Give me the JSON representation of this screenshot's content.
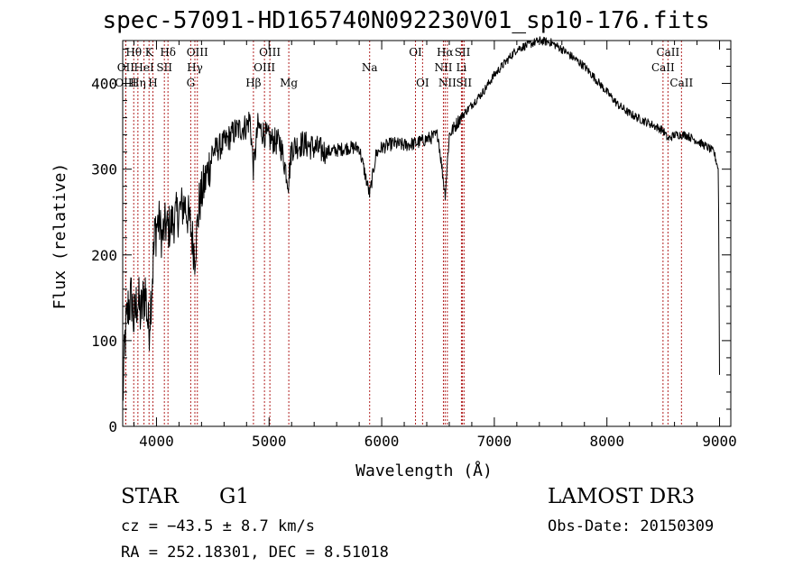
{
  "title": "spec-57091-HD165740N092230V01_sp10-176.fits",
  "info": {
    "object_class": "STAR",
    "subclass": "G1",
    "survey": "LAMOST DR3",
    "cz_line": "cz = −43.5 ± 8.7 km/s",
    "obs_date_line": "Obs-Date: 20150309",
    "radec_line": "RA = 252.18301, DEC =   8.51018"
  },
  "chart_data": {
    "type": "line",
    "title": "spec-57091-HD165740N092230V01_sp10-176.fits",
    "xlabel": "Wavelength (Å)",
    "ylabel": "Flux (relative)",
    "xlim": [
      3700,
      9100
    ],
    "ylim": [
      0,
      450
    ],
    "xticks": [
      4000,
      5000,
      6000,
      7000,
      8000,
      9000
    ],
    "yticks": [
      0,
      100,
      200,
      300,
      400
    ],
    "grid": false,
    "line_color": "#000000",
    "marker_color": "#b22222",
    "series": [
      {
        "x": [
          3700,
          3720,
          3750,
          3780,
          3800,
          3830,
          3860,
          3900,
          3930,
          3960,
          3990,
          4020,
          4050,
          4080,
          4100,
          4150,
          4200,
          4250,
          4300,
          4340,
          4380,
          4420,
          4500,
          4600,
          4700,
          4800,
          4830,
          4861,
          4900,
          5000,
          5100,
          5172,
          5200,
          5300,
          5400,
          5500,
          5600,
          5700,
          5800,
          5893,
          5950,
          6000,
          6100,
          6200,
          6300,
          6400,
          6500,
          6563,
          6600,
          6700,
          6800,
          6900,
          7000,
          7100,
          7200,
          7300,
          7400,
          7500,
          7600,
          7700,
          7800,
          7900,
          8000,
          8100,
          8200,
          8300,
          8400,
          8500,
          8542,
          8600,
          8700,
          8800,
          8900,
          8950,
          8990,
          9000
        ],
        "y": [
          30,
          100,
          140,
          150,
          120,
          150,
          130,
          160,
          110,
          170,
          230,
          240,
          220,
          235,
          230,
          240,
          250,
          260,
          235,
          200,
          260,
          280,
          320,
          330,
          345,
          350,
          360,
          300,
          350,
          335,
          330,
          285,
          325,
          330,
          325,
          320,
          322,
          325,
          325,
          270,
          318,
          325,
          330,
          328,
          330,
          335,
          340,
          270,
          340,
          360,
          375,
          390,
          410,
          425,
          440,
          445,
          450,
          448,
          440,
          430,
          420,
          405,
          390,
          375,
          365,
          358,
          352,
          345,
          335,
          340,
          340,
          333,
          325,
          320,
          300,
          60
        ]
      }
    ],
    "lines": [
      {
        "label": "Hθ",
        "x": 3798,
        "row": 0
      },
      {
        "label": "OII",
        "x": 3727,
        "row": 1
      },
      {
        "label": "OIII",
        "x": 3727,
        "row": 2
      },
      {
        "label": "Hη",
        "x": 3835,
        "row": 2
      },
      {
        "label": "K",
        "x": 3934,
        "row": 0
      },
      {
        "label": "HeI",
        "x": 3889,
        "row": 1
      },
      {
        "label": "H",
        "x": 3968,
        "row": 2
      },
      {
        "label": "SII",
        "x": 4070,
        "row": 1
      },
      {
        "label": "Hδ",
        "x": 4102,
        "row": 0
      },
      {
        "label": "OIII",
        "x": 4363,
        "row": 0
      },
      {
        "label": "Hγ",
        "x": 4341,
        "row": 1
      },
      {
        "label": "G",
        "x": 4304,
        "row": 2
      },
      {
        "label": "OIII",
        "x": 5007,
        "row": 0
      },
      {
        "label": "OIII",
        "x": 4959,
        "row": 1
      },
      {
        "label": "Hβ",
        "x": 4861,
        "row": 2
      },
      {
        "label": "Mg",
        "x": 5175,
        "row": 2
      },
      {
        "label": "Na",
        "x": 5893,
        "row": 1
      },
      {
        "label": "OI",
        "x": 6300,
        "row": 0
      },
      {
        "label": "OI",
        "x": 6363,
        "row": 2
      },
      {
        "label": "Hα",
        "x": 6563,
        "row": 0
      },
      {
        "label": "NII",
        "x": 6548,
        "row": 1
      },
      {
        "label": "NII",
        "x": 6583,
        "row": 2
      },
      {
        "label": "SII",
        "x": 6717,
        "row": 0
      },
      {
        "label": "Li",
        "x": 6708,
        "row": 1
      },
      {
        "label": "SII",
        "x": 6731,
        "row": 2
      },
      {
        "label": "CaII",
        "x": 8542,
        "row": 0
      },
      {
        "label": "CaII",
        "x": 8498,
        "row": 1
      },
      {
        "label": "CaII",
        "x": 8662,
        "row": 2
      }
    ]
  }
}
